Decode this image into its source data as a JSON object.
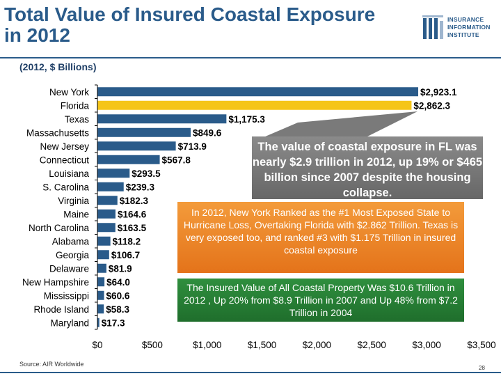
{
  "header": {
    "title_line1": "Total Value of Insured Coastal Exposure",
    "title_line2": "in 2012",
    "subtitle": "(2012, $ Billions)"
  },
  "logo": {
    "line1": "INSURANCE",
    "line2": "INFORMATION",
    "line3": "INSTITUTE"
  },
  "callouts": {
    "fl": "The value of coastal exposure in FL was nearly $2.9 trillion in 2012, up 19% or $465 billion since 2007 despite the housing collapse.",
    "ny": "In 2012, New York Ranked as the #1 Most Exposed State to Hurricane Loss, Overtaking Florida with $2.862 Trillion. Texas is very exposed too, and ranked #3 with $1.175 Trillion in insured coastal exposure",
    "total": "The Insured Value of All Coastal Property Was $10.6 Trillion in 2012 , Up 20% from $8.9 Trillion in 2007 and Up 48% from $7.2 Trillion in 2004"
  },
  "footer": {
    "source": "Source: AIR Worldwide",
    "page_number": "28"
  },
  "colors": {
    "bar": "#2a5b8a",
    "highlight_bar": "#f5c518",
    "title": "#2a5b8a"
  },
  "chart_data": {
    "type": "bar",
    "orientation": "horizontal",
    "categories": [
      "New York",
      "Florida",
      "Texas",
      "Massachusetts",
      "New Jersey",
      "Connecticut",
      "Louisiana",
      "S. Carolina",
      "Virginia",
      "Maine",
      "North Carolina",
      "Alabama",
      "Georgia",
      "Delaware",
      "New Hampshire",
      "Mississippi",
      "Rhode Island",
      "Maryland"
    ],
    "values": [
      2923.1,
      2862.3,
      1175.3,
      849.6,
      713.9,
      567.8,
      293.5,
      239.3,
      182.3,
      164.6,
      163.5,
      118.2,
      106.7,
      81.9,
      64.0,
      60.6,
      58.3,
      17.3
    ],
    "data_labels": [
      "$2,923.1",
      "$2,862.3",
      "$1,175.3",
      "$849.6",
      "$713.9",
      "$567.8",
      "$293.5",
      "$239.3",
      "$182.3",
      "$164.6",
      "$163.5",
      "$118.2",
      "$106.7",
      "$81.9",
      "$64.0",
      "$60.6",
      "$58.3",
      "$17.3"
    ],
    "highlight_category": "Florida",
    "x_ticks": [
      "$0",
      "$500",
      "$1,000",
      "$1,500",
      "$2,000",
      "$2,500",
      "$3,000",
      "$3,500"
    ],
    "xlim": [
      0,
      3500
    ],
    "grid": false,
    "title": "Total Value of Insured Coastal Exposure in 2012",
    "subtitle": "(2012, $ Billions)"
  }
}
